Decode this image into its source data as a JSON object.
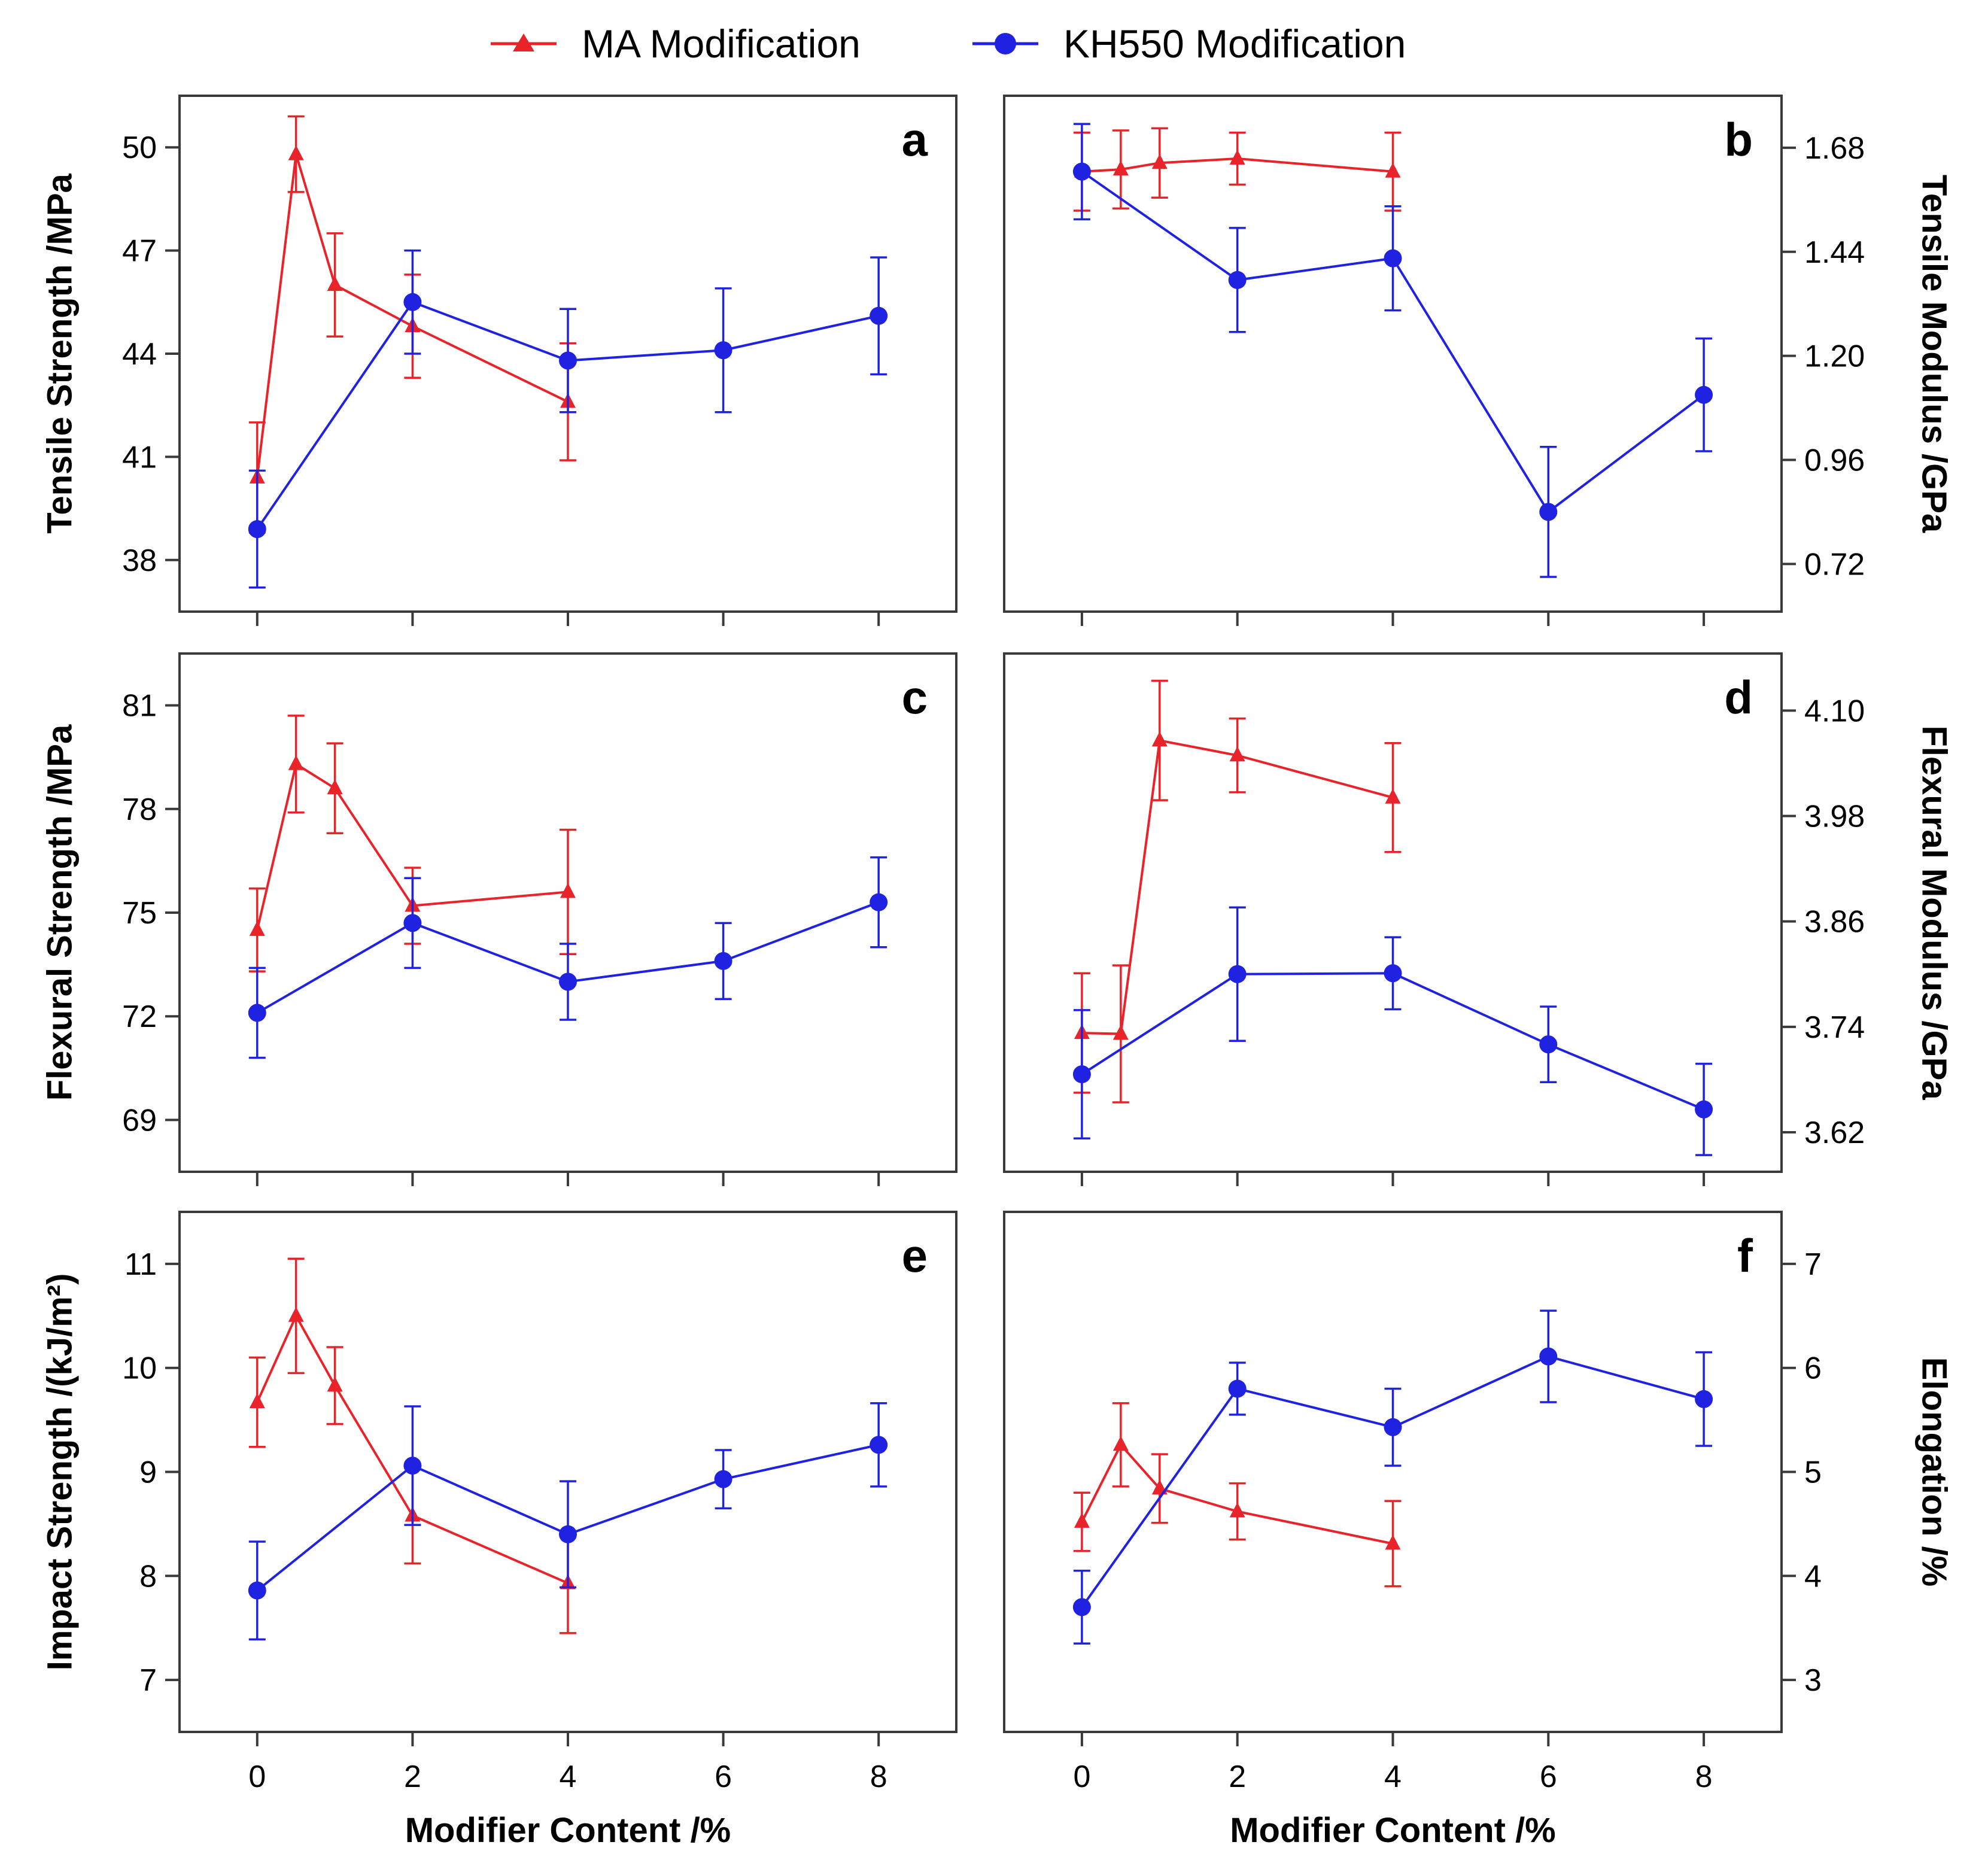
{
  "legend": {
    "ma_label": "MA Modification",
    "kh_label": "KH550 Modification"
  },
  "colors": {
    "ma": "#e8232a",
    "kh": "#1f22e0",
    "axis": "#3a3a3a"
  },
  "chart_data": [
    {
      "type": "line",
      "panel": "a",
      "ylabel": "Tensile Strength /MPa",
      "ylim": [
        36.5,
        51.5
      ],
      "yticks": [
        38,
        41,
        44,
        47,
        50
      ],
      "ytick_labels": [
        "38",
        "41",
        "44",
        "47",
        "50"
      ],
      "xlabel": "",
      "xlim": [
        -1,
        9
      ],
      "xticks": [
        0,
        2,
        4,
        6,
        8
      ],
      "series": [
        {
          "name": "MA Modification",
          "marker": "triangle",
          "x": [
            0,
            0.5,
            1,
            2,
            4
          ],
          "y": [
            40.4,
            49.8,
            46.0,
            44.8,
            42.6
          ],
          "err": [
            1.6,
            1.1,
            1.5,
            1.5,
            1.7
          ]
        },
        {
          "name": "KH550 Modification",
          "marker": "circle",
          "x": [
            0,
            2,
            4,
            6,
            8
          ],
          "y": [
            38.9,
            45.5,
            43.8,
            44.1,
            45.1
          ],
          "err": [
            1.7,
            1.5,
            1.5,
            1.8,
            1.7
          ]
        }
      ]
    },
    {
      "type": "line",
      "panel": "b",
      "ylabel": "Tensile Modulus /GPa",
      "ylim": [
        0.61,
        1.8
      ],
      "yticks": [
        0.72,
        0.96,
        1.2,
        1.44,
        1.68
      ],
      "ytick_labels": [
        "0.72",
        "0.96",
        "1.20",
        "1.44",
        "1.68"
      ],
      "xlabel": "",
      "xlim": [
        -1,
        9
      ],
      "xticks": [
        0,
        2,
        4,
        6,
        8
      ],
      "series": [
        {
          "name": "MA Modification",
          "marker": "triangle",
          "x": [
            0,
            0.5,
            1,
            2,
            4
          ],
          "y": [
            1.625,
            1.63,
            1.645,
            1.655,
            1.625
          ],
          "err": [
            0.09,
            0.09,
            0.08,
            0.06,
            0.09
          ]
        },
        {
          "name": "KH550 Modification",
          "marker": "circle",
          "x": [
            0,
            2,
            4,
            6,
            8
          ],
          "y": [
            1.625,
            1.375,
            1.425,
            0.84,
            1.11
          ],
          "err": [
            0.11,
            0.12,
            0.12,
            0.15,
            0.13
          ]
        }
      ]
    },
    {
      "type": "line",
      "panel": "c",
      "ylabel": "Flexural Strength /MPa",
      "ylim": [
        67.5,
        82.5
      ],
      "yticks": [
        69,
        72,
        75,
        78,
        81
      ],
      "ytick_labels": [
        "69",
        "72",
        "75",
        "78",
        "81"
      ],
      "xlabel": "",
      "xlim": [
        -1,
        9
      ],
      "xticks": [
        0,
        2,
        4,
        6,
        8
      ],
      "series": [
        {
          "name": "MA Modification",
          "marker": "triangle",
          "x": [
            0,
            0.5,
            1,
            2,
            4
          ],
          "y": [
            74.5,
            79.3,
            78.6,
            75.2,
            75.6
          ],
          "err": [
            1.2,
            1.4,
            1.3,
            1.1,
            1.8
          ]
        },
        {
          "name": "KH550 Modification",
          "marker": "circle",
          "x": [
            0,
            2,
            4,
            6,
            8
          ],
          "y": [
            72.1,
            74.7,
            73.0,
            73.6,
            75.3
          ],
          "err": [
            1.3,
            1.3,
            1.1,
            1.1,
            1.3
          ]
        }
      ]
    },
    {
      "type": "line",
      "panel": "d",
      "ylabel": "Flexural Modulus /GPa",
      "ylim": [
        3.575,
        4.165
      ],
      "yticks": [
        3.62,
        3.74,
        3.86,
        3.98,
        4.1
      ],
      "ytick_labels": [
        "3.62",
        "3.74",
        "3.86",
        "3.98",
        "4.10"
      ],
      "xlabel": "",
      "xlim": [
        -1,
        9
      ],
      "xticks": [
        0,
        2,
        4,
        6,
        8
      ],
      "series": [
        {
          "name": "MA Modification",
          "marker": "triangle",
          "x": [
            0,
            0.5,
            1,
            2,
            4
          ],
          "y": [
            3.733,
            3.732,
            4.066,
            4.049,
            4.001
          ],
          "err": [
            0.068,
            0.078,
            0.068,
            0.042,
            0.062
          ]
        },
        {
          "name": "KH550 Modification",
          "marker": "circle",
          "x": [
            0,
            2,
            4,
            6,
            8
          ],
          "y": [
            3.686,
            3.8,
            3.801,
            3.72,
            3.646
          ],
          "err": [
            0.073,
            0.076,
            0.041,
            0.043,
            0.052
          ]
        }
      ]
    },
    {
      "type": "line",
      "panel": "e",
      "ylabel": "Impact Strength /(kJ/m²)",
      "ylim": [
        6.5,
        11.5
      ],
      "yticks": [
        7,
        8,
        9,
        10,
        11
      ],
      "ytick_labels": [
        "7",
        "8",
        "9",
        "10",
        "11"
      ],
      "xlabel": "Modifier Content /%",
      "xlim": [
        -1,
        9
      ],
      "xticks": [
        0,
        2,
        4,
        6,
        8
      ],
      "xtick_labels": [
        "0",
        "2",
        "4",
        "6",
        "8"
      ],
      "series": [
        {
          "name": "MA Modification",
          "marker": "triangle",
          "x": [
            0,
            0.5,
            1,
            2,
            4
          ],
          "y": [
            9.67,
            10.5,
            9.83,
            8.58,
            7.93
          ],
          "err": [
            0.43,
            0.55,
            0.37,
            0.46,
            0.48
          ]
        },
        {
          "name": "KH550 Modification",
          "marker": "circle",
          "x": [
            0,
            2,
            4,
            6,
            8
          ],
          "y": [
            7.86,
            9.06,
            8.4,
            8.93,
            9.26
          ],
          "err": [
            0.47,
            0.57,
            0.51,
            0.28,
            0.4
          ]
        }
      ]
    },
    {
      "type": "line",
      "panel": "f",
      "ylabel": "Elongation /%",
      "ylim": [
        2.5,
        7.5
      ],
      "yticks": [
        3,
        4,
        5,
        6,
        7
      ],
      "ytick_labels": [
        "3",
        "4",
        "5",
        "6",
        "7"
      ],
      "xlabel": "Modifier Content /%",
      "xlim": [
        -1,
        9
      ],
      "xticks": [
        0,
        2,
        4,
        6,
        8
      ],
      "xtick_labels": [
        "0",
        "2",
        "4",
        "6",
        "8"
      ],
      "series": [
        {
          "name": "MA Modification",
          "marker": "triangle",
          "x": [
            0,
            0.5,
            1,
            2,
            4
          ],
          "y": [
            4.52,
            5.26,
            4.84,
            4.62,
            4.31
          ],
          "err": [
            0.28,
            0.4,
            0.33,
            0.27,
            0.41
          ]
        },
        {
          "name": "KH550 Modification",
          "marker": "circle",
          "x": [
            0,
            2,
            4,
            6,
            8
          ],
          "y": [
            3.7,
            5.8,
            5.43,
            6.11,
            5.7
          ],
          "err": [
            0.35,
            0.25,
            0.37,
            0.44,
            0.45
          ]
        }
      ]
    }
  ]
}
